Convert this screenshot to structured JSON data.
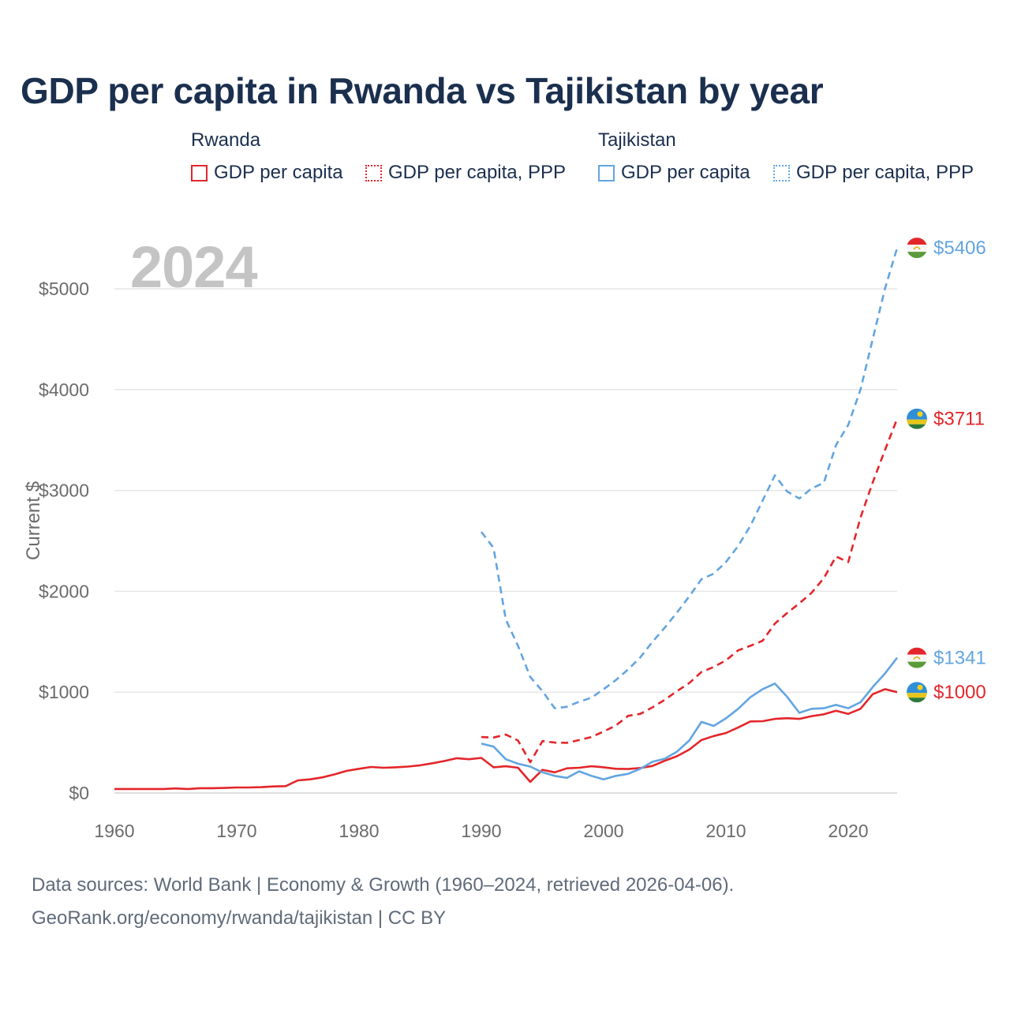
{
  "title": "GDP per capita in Rwanda vs Tajikistan by year",
  "year_display": "2024",
  "legend": {
    "groups": [
      {
        "name": "Rwanda",
        "color": "#e3262b",
        "items": [
          {
            "label": "GDP per capita",
            "style": "solid"
          },
          {
            "label": "GDP per capita, PPP",
            "style": "dotted"
          }
        ]
      },
      {
        "name": "Tajikistan",
        "color": "#62a5e0",
        "items": [
          {
            "label": "GDP per capita",
            "style": "solid"
          },
          {
            "label": "GDP per capita, PPP",
            "style": "dotted"
          }
        ]
      }
    ]
  },
  "footer": {
    "line1": "Data sources: World Bank | Economy & Growth (1960–2024, retrieved 2026-04-06).",
    "line2": "GeoRank.org/economy/rwanda/tajikistan | CC BY"
  },
  "chart_data": {
    "type": "line",
    "title": "GDP per capita in Rwanda vs Tajikistan by year",
    "xlabel": "",
    "ylabel": "Current $",
    "xlim": [
      1960,
      2024
    ],
    "ylim": [
      0,
      5400
    ],
    "x_ticks": [
      1960,
      1970,
      1980,
      1990,
      2000,
      2010,
      2020
    ],
    "y_ticks": [
      0,
      1000,
      2000,
      3000,
      4000,
      5000
    ],
    "y_tick_labels": [
      "$0",
      "$1000",
      "$2000",
      "$3000",
      "$4000",
      "$5000"
    ],
    "grid": true,
    "series": [
      {
        "name": "Rwanda GDP per capita",
        "country": "Rwanda",
        "flag": "rwanda",
        "color": "#e3262b",
        "dash": "solid",
        "end_label": "$1000",
        "points": [
          [
            1960,
            40
          ],
          [
            1961,
            40
          ],
          [
            1962,
            40
          ],
          [
            1963,
            40
          ],
          [
            1964,
            40
          ],
          [
            1965,
            45
          ],
          [
            1966,
            40
          ],
          [
            1967,
            48
          ],
          [
            1968,
            48
          ],
          [
            1969,
            50
          ],
          [
            1970,
            55
          ],
          [
            1971,
            55
          ],
          [
            1972,
            58
          ],
          [
            1973,
            65
          ],
          [
            1974,
            68
          ],
          [
            1975,
            125
          ],
          [
            1976,
            135
          ],
          [
            1977,
            155
          ],
          [
            1978,
            185
          ],
          [
            1979,
            220
          ],
          [
            1980,
            240
          ],
          [
            1981,
            258
          ],
          [
            1982,
            250
          ],
          [
            1983,
            255
          ],
          [
            1984,
            262
          ],
          [
            1985,
            275
          ],
          [
            1986,
            295
          ],
          [
            1987,
            318
          ],
          [
            1988,
            345
          ],
          [
            1989,
            335
          ],
          [
            1990,
            348
          ],
          [
            1991,
            255
          ],
          [
            1992,
            265
          ],
          [
            1993,
            250
          ],
          [
            1994,
            110
          ],
          [
            1995,
            230
          ],
          [
            1996,
            205
          ],
          [
            1997,
            245
          ],
          [
            1998,
            250
          ],
          [
            1999,
            265
          ],
          [
            2000,
            255
          ],
          [
            2001,
            240
          ],
          [
            2002,
            238
          ],
          [
            2003,
            248
          ],
          [
            2004,
            268
          ],
          [
            2005,
            320
          ],
          [
            2006,
            365
          ],
          [
            2007,
            430
          ],
          [
            2008,
            525
          ],
          [
            2009,
            565
          ],
          [
            2010,
            595
          ],
          [
            2011,
            650
          ],
          [
            2012,
            710
          ],
          [
            2013,
            712
          ],
          [
            2014,
            735
          ],
          [
            2015,
            742
          ],
          [
            2016,
            735
          ],
          [
            2017,
            762
          ],
          [
            2018,
            780
          ],
          [
            2019,
            815
          ],
          [
            2020,
            785
          ],
          [
            2021,
            835
          ],
          [
            2022,
            980
          ],
          [
            2023,
            1030
          ],
          [
            2024,
            1000
          ]
        ]
      },
      {
        "name": "Rwanda GDP per capita, PPP",
        "country": "Rwanda",
        "flag": "rwanda",
        "color": "#e3262b",
        "dash": "dashed",
        "end_label": "$3711",
        "points": [
          [
            1990,
            555
          ],
          [
            1991,
            550
          ],
          [
            1992,
            580
          ],
          [
            1993,
            520
          ],
          [
            1994,
            305
          ],
          [
            1995,
            515
          ],
          [
            1996,
            500
          ],
          [
            1997,
            498
          ],
          [
            1998,
            525
          ],
          [
            1999,
            555
          ],
          [
            2000,
            610
          ],
          [
            2001,
            670
          ],
          [
            2002,
            765
          ],
          [
            2003,
            785
          ],
          [
            2004,
            850
          ],
          [
            2005,
            925
          ],
          [
            2006,
            1010
          ],
          [
            2007,
            1090
          ],
          [
            2008,
            1200
          ],
          [
            2009,
            1250
          ],
          [
            2010,
            1315
          ],
          [
            2011,
            1415
          ],
          [
            2012,
            1460
          ],
          [
            2013,
            1510
          ],
          [
            2014,
            1680
          ],
          [
            2015,
            1785
          ],
          [
            2016,
            1880
          ],
          [
            2017,
            1985
          ],
          [
            2018,
            2130
          ],
          [
            2019,
            2345
          ],
          [
            2020,
            2290
          ],
          [
            2021,
            2730
          ],
          [
            2022,
            3080
          ],
          [
            2023,
            3400
          ],
          [
            2024,
            3711
          ]
        ]
      },
      {
        "name": "Tajikistan GDP per capita",
        "country": "Tajikistan",
        "flag": "tajikistan",
        "color": "#62a5e0",
        "dash": "solid",
        "end_label": "$1341",
        "points": [
          [
            1990,
            490
          ],
          [
            1991,
            460
          ],
          [
            1992,
            335
          ],
          [
            1993,
            290
          ],
          [
            1994,
            262
          ],
          [
            1995,
            205
          ],
          [
            1996,
            170
          ],
          [
            1997,
            150
          ],
          [
            1998,
            215
          ],
          [
            1999,
            170
          ],
          [
            2000,
            135
          ],
          [
            2001,
            170
          ],
          [
            2002,
            190
          ],
          [
            2003,
            240
          ],
          [
            2004,
            310
          ],
          [
            2005,
            340
          ],
          [
            2006,
            410
          ],
          [
            2007,
            520
          ],
          [
            2008,
            705
          ],
          [
            2009,
            665
          ],
          [
            2010,
            740
          ],
          [
            2011,
            835
          ],
          [
            2012,
            950
          ],
          [
            2013,
            1030
          ],
          [
            2014,
            1085
          ],
          [
            2015,
            955
          ],
          [
            2016,
            795
          ],
          [
            2017,
            835
          ],
          [
            2018,
            840
          ],
          [
            2019,
            875
          ],
          [
            2020,
            840
          ],
          [
            2021,
            900
          ],
          [
            2022,
            1050
          ],
          [
            2023,
            1185
          ],
          [
            2024,
            1341
          ]
        ]
      },
      {
        "name": "Tajikistan GDP per capita, PPP",
        "country": "Tajikistan",
        "flag": "tajikistan",
        "color": "#62a5e0",
        "dash": "dashed",
        "end_label": "$5406",
        "points": [
          [
            1990,
            2590
          ],
          [
            1991,
            2430
          ],
          [
            1992,
            1720
          ],
          [
            1993,
            1460
          ],
          [
            1994,
            1150
          ],
          [
            1995,
            1010
          ],
          [
            1996,
            840
          ],
          [
            1997,
            855
          ],
          [
            1998,
            905
          ],
          [
            1999,
            945
          ],
          [
            2000,
            1030
          ],
          [
            2001,
            1120
          ],
          [
            2002,
            1225
          ],
          [
            2003,
            1345
          ],
          [
            2004,
            1500
          ],
          [
            2005,
            1640
          ],
          [
            2006,
            1790
          ],
          [
            2007,
            1950
          ],
          [
            2008,
            2120
          ],
          [
            2009,
            2175
          ],
          [
            2010,
            2290
          ],
          [
            2011,
            2450
          ],
          [
            2012,
            2650
          ],
          [
            2013,
            2900
          ],
          [
            2014,
            3150
          ],
          [
            2015,
            2990
          ],
          [
            2016,
            2920
          ],
          [
            2017,
            3020
          ],
          [
            2018,
            3075
          ],
          [
            2019,
            3450
          ],
          [
            2020,
            3650
          ],
          [
            2021,
            4000
          ],
          [
            2022,
            4500
          ],
          [
            2023,
            5000
          ],
          [
            2024,
            5406
          ]
        ]
      }
    ]
  }
}
